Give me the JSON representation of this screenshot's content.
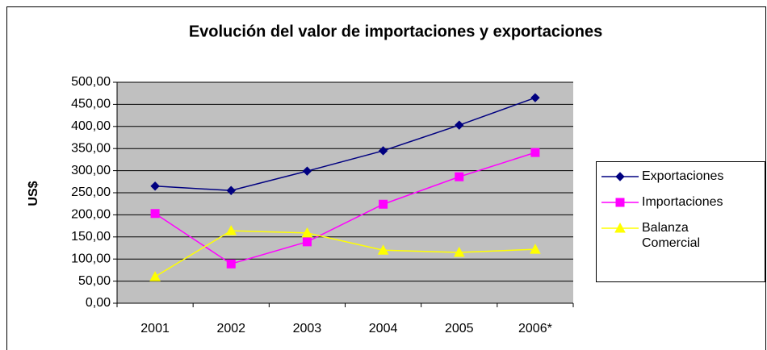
{
  "chart_data": {
    "type": "line",
    "title": "Evolución del valor de importaciones y exportaciones",
    "y_label": "US$",
    "categories": [
      "2001",
      "2002",
      "2003",
      "2004",
      "2005",
      "2006*"
    ],
    "series": [
      {
        "name": "Exportaciones",
        "color": "#000080",
        "marker": "diamond",
        "values": [
          265,
          255,
          299,
          345,
          403,
          465
        ]
      },
      {
        "name": "Importaciones",
        "color": "#ff00ff",
        "marker": "square",
        "values": [
          203,
          89,
          139,
          224,
          286,
          341
        ]
      },
      {
        "name": "Balanza Comercial",
        "color": "#ffff00",
        "marker": "triangle",
        "values": [
          60,
          164,
          159,
          120,
          115,
          122
        ]
      }
    ],
    "ylim": [
      0,
      500
    ],
    "yticks": [
      {
        "value": 0,
        "label": "0,00"
      },
      {
        "value": 50,
        "label": "50,00"
      },
      {
        "value": 100,
        "label": "100,00"
      },
      {
        "value": 150,
        "label": "150,00"
      },
      {
        "value": 200,
        "label": "200,00"
      },
      {
        "value": 250,
        "label": "250,00"
      },
      {
        "value": 300,
        "label": "300,00"
      },
      {
        "value": 350,
        "label": "350,00"
      },
      {
        "value": 400,
        "label": "400,00"
      },
      {
        "value": 450,
        "label": "450,00"
      },
      {
        "value": 500,
        "label": "500,00"
      }
    ],
    "grid": true,
    "plot_background": "#c0c0c0",
    "legend": "right"
  }
}
